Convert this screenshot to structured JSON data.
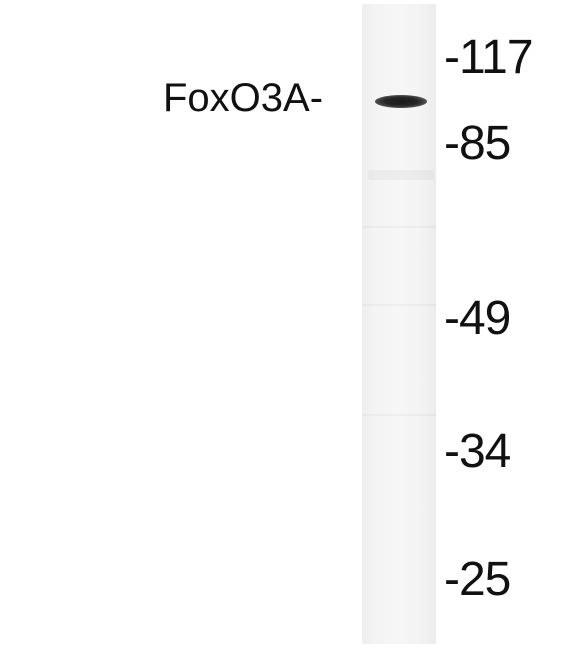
{
  "blot": {
    "protein_label": "FoxO3A-",
    "markers": [
      "-117",
      "-85",
      "-49",
      "-34",
      "-25"
    ]
  },
  "colors": {
    "background": "#ffffff",
    "band": "#1a1a1a",
    "lane": "#f4f4f4",
    "text": "#111111"
  }
}
